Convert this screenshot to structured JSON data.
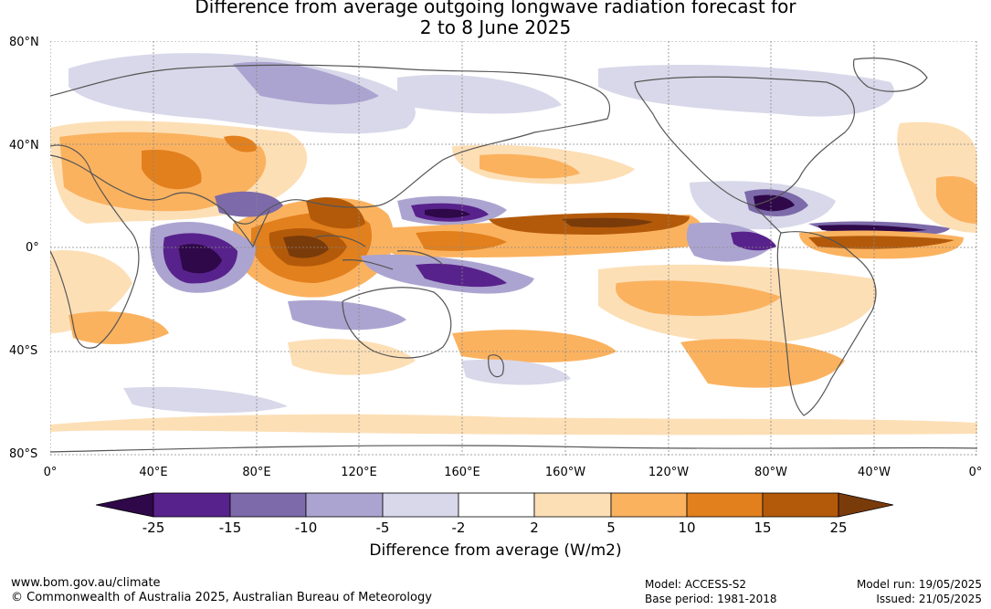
{
  "title": {
    "line1": "Difference from average outgoing longwave radiation forecast for",
    "line2": "2 to 8 June 2025"
  },
  "lat_labels": [
    "80°N",
    "40°N",
    "0°",
    "40°S",
    "80°S"
  ],
  "lon_labels": [
    "0°",
    "40°E",
    "80°E",
    "120°E",
    "160°E",
    "160°W",
    "120°W",
    "80°W",
    "40°W",
    "0°"
  ],
  "colorbar": {
    "ticks": [
      "-25",
      "-15",
      "-10",
      "-5",
      "-2",
      "2",
      "5",
      "10",
      "15",
      "25"
    ],
    "label": "Difference from average (W/m2)",
    "colors": {
      "lt_-25": "#2e0848",
      "-25_-15": "#58228c",
      "-15_-10": "#7d6aaa",
      "-10_-5": "#aca4d0",
      "-5_-2": "#d8d8ea",
      "-2_2": "#ffffff",
      "2_5": "#fddfb6",
      "5_10": "#fbb25f",
      "10_15": "#e2801d",
      "15_25": "#b35a0a",
      "gt_25": "#7a3b0b"
    }
  },
  "footer": {
    "website": "www.bom.gov.au/climate",
    "copyright": "© Commonwealth of Australia 2025, Australian Bureau of Meteorology",
    "model": "Model: ACCESS-S2",
    "base_period": "Base period: 1981-2018",
    "model_run": "Model run: 19/05/2025",
    "issued": "Issued: 21/05/2025"
  }
}
